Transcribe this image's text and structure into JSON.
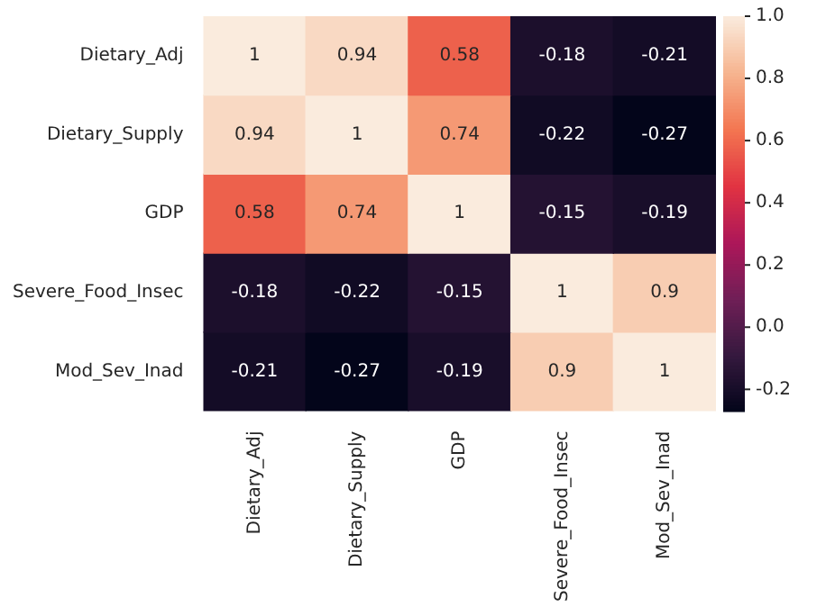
{
  "chart_data": {
    "type": "heatmap",
    "categories": [
      "Dietary_Adj",
      "Dietary_Supply",
      "GDP",
      "Severe_Food_Insec",
      "Mod_Sev_Inad"
    ],
    "y_categories": [
      "Dietary_Adj",
      "Dietary_Supply",
      "GDP",
      "Severe_Food_Insec",
      "Mod_Sev_Inad"
    ],
    "cells": [
      [
        1,
        0.94,
        0.58,
        -0.18,
        -0.21
      ],
      [
        0.94,
        1,
        0.74,
        -0.22,
        -0.27
      ],
      [
        0.58,
        0.74,
        1,
        -0.15,
        -0.19
      ],
      [
        -0.18,
        -0.22,
        -0.15,
        1,
        0.9
      ],
      [
        -0.21,
        -0.27,
        -0.19,
        0.9,
        1
      ]
    ],
    "data_labels": true,
    "clim": [
      -0.27,
      1
    ],
    "cticks": [
      -0.2,
      {
        "value": 0,
        "label": "0.0"
      },
      0.2,
      0.4,
      0.6,
      0.8,
      {
        "value": 1,
        "label": "1.0"
      }
    ]
  }
}
